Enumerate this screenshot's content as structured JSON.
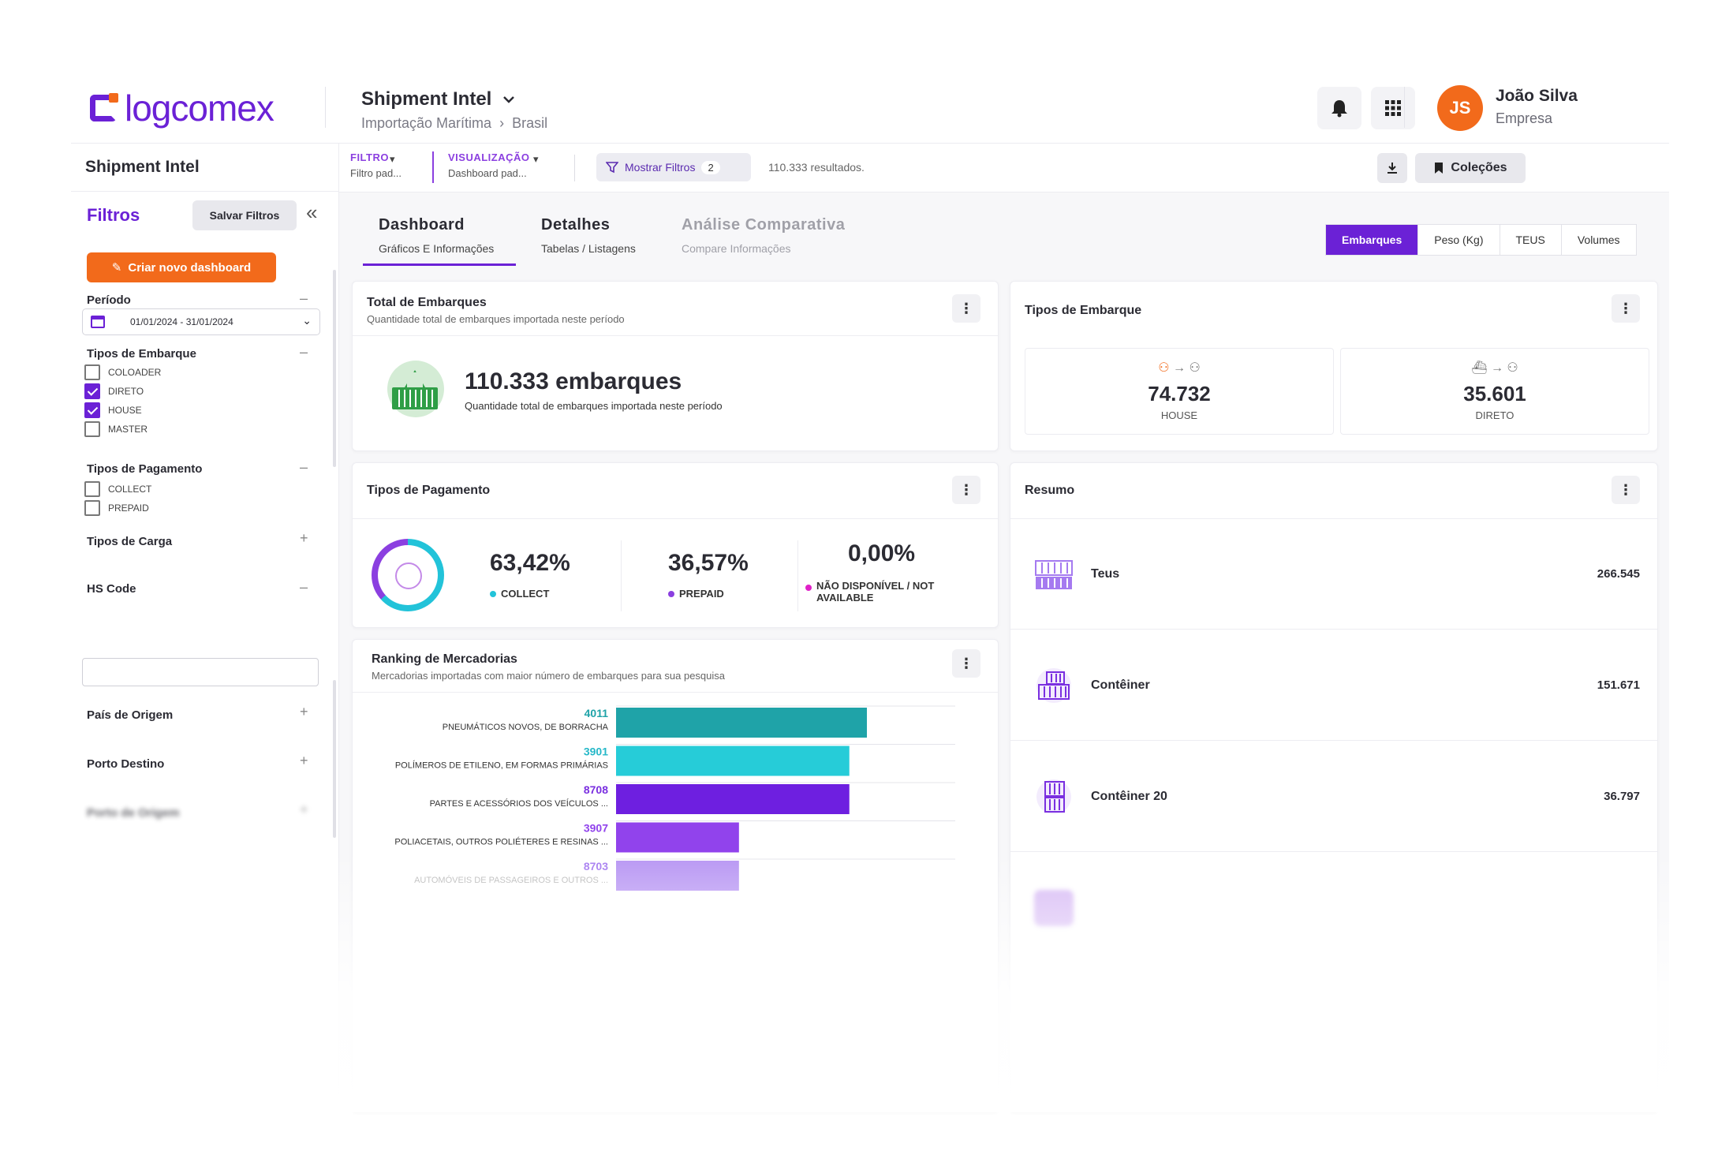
{
  "header": {
    "logo": "logcomex",
    "product": "Shipment Intel",
    "crumb": [
      "Importação Marítima",
      "Brasil"
    ],
    "user_initials": "JS",
    "user_name": "João Silva",
    "user_company": "Empresa"
  },
  "sidebar": {
    "title": "Shipment Intel",
    "filters_label": "Filtros",
    "save_label": "Salvar Filtros",
    "create_label": "Criar novo dashboard",
    "period_label": "Período",
    "period_value": "01/01/2024 - 31/01/2024",
    "tipos_embarque_label": "Tipos de Embarque",
    "tipos_embarque": [
      {
        "label": "COLOADER",
        "checked": false
      },
      {
        "label": "DIRETO",
        "checked": true
      },
      {
        "label": "HOUSE",
        "checked": true
      },
      {
        "label": "MASTER",
        "checked": false
      }
    ],
    "tipos_pagamento_label": "Tipos de Pagamento",
    "tipos_pagamento": [
      {
        "label": "COLLECT",
        "checked": false
      },
      {
        "label": "PREPAID",
        "checked": false
      }
    ],
    "tipos_carga_label": "Tipos de Carga",
    "hs_code_label": "HS Code",
    "pais_origem_label": "País de Origem",
    "porto_destino_label": "Porto Destino",
    "porto_origem_label": "Porto de Origem"
  },
  "topbar": {
    "filtro_label": "FILTRO",
    "filtro_value": "Filtro pad...",
    "visual_label": "VISUALIZAÇÃO",
    "visual_value": "Dashboard pad...",
    "show_filters": "Mostrar Filtros",
    "filters_count": "2",
    "results": "110.333 resultados.",
    "collections": "Coleções"
  },
  "tabs": [
    {
      "title": "Dashboard",
      "sub": "Gráficos E Informações"
    },
    {
      "title": "Detalhes",
      "sub": "Tabelas / Listagens"
    },
    {
      "title": "Análise Comparativa",
      "sub": "Compare Informações"
    }
  ],
  "metrics": [
    "Embarques",
    "Peso (Kg)",
    "TEUS",
    "Volumes"
  ],
  "total": {
    "title": "Total de Embarques",
    "subtitle": "Quantidade total de embarques importada neste período",
    "value": "110.333 embarques",
    "value_sub": "Quantidade total de embarques importada neste período"
  },
  "tipos_embarque_card": {
    "title": "Tipos de Embarque",
    "house_value": "74.732",
    "house_label": "HOUSE",
    "direto_value": "35.601",
    "direto_label": "DIRETO"
  },
  "pagamento": {
    "title": "Tipos de Pagamento",
    "collect_pct": "63,42%",
    "collect_label": "COLLECT",
    "prepaid_pct": "36,57%",
    "prepaid_label": "PREPAID",
    "na_pct": "0,00%",
    "na_label_1": "NÃO DISPONÍVEL / NOT",
    "na_label_2": "AVAILABLE",
    "colors": {
      "collect": "#22c3d9",
      "prepaid": "#8b3fe0",
      "na": "#e020c8"
    }
  },
  "resumo": {
    "title": "Resumo",
    "rows": [
      {
        "name": "Teus",
        "value": "266.545"
      },
      {
        "name": "Contêiner",
        "value": "151.671"
      },
      {
        "name": "Contêiner 20",
        "value": "36.797"
      }
    ]
  },
  "chart_data": {
    "type": "bar",
    "orientation": "horizontal",
    "title": "Ranking de Mercadorias",
    "subtitle": "Mercadorias importadas com maior número de embarques para sua pesquisa",
    "categories": [
      {
        "code": "4011",
        "label": "PNEUMÁTICOS NOVOS, DE BORRACHA",
        "color": "#1fa3a8",
        "code_color": "#1fa3a8"
      },
      {
        "code": "3901",
        "label": "POLÍMEROS DE ETILENO, EM FORMAS PRIMÁRIAS",
        "color": "#26ccd8",
        "code_color": "#26b8c8"
      },
      {
        "code": "8708",
        "label": "PARTES E ACESSÓRIOS DOS VEÍCULOS ...",
        "color": "#6e1fe0",
        "code_color": "#7a2fe0"
      },
      {
        "code": "3907",
        "label": "POLIACETAIS, OUTROS POLIÉTERES E RESINAS ...",
        "color": "#9143ec",
        "code_color": "#9143ec"
      },
      {
        "code": "8703",
        "label": "AUTOMÓVEIS DE PASSAGEIROS E OUTROS ...",
        "color": "#a57af0",
        "code_color": "#a57af0"
      }
    ],
    "values": [
      100,
      93,
      93,
      49,
      49
    ],
    "xlim": [
      0,
      100
    ]
  }
}
